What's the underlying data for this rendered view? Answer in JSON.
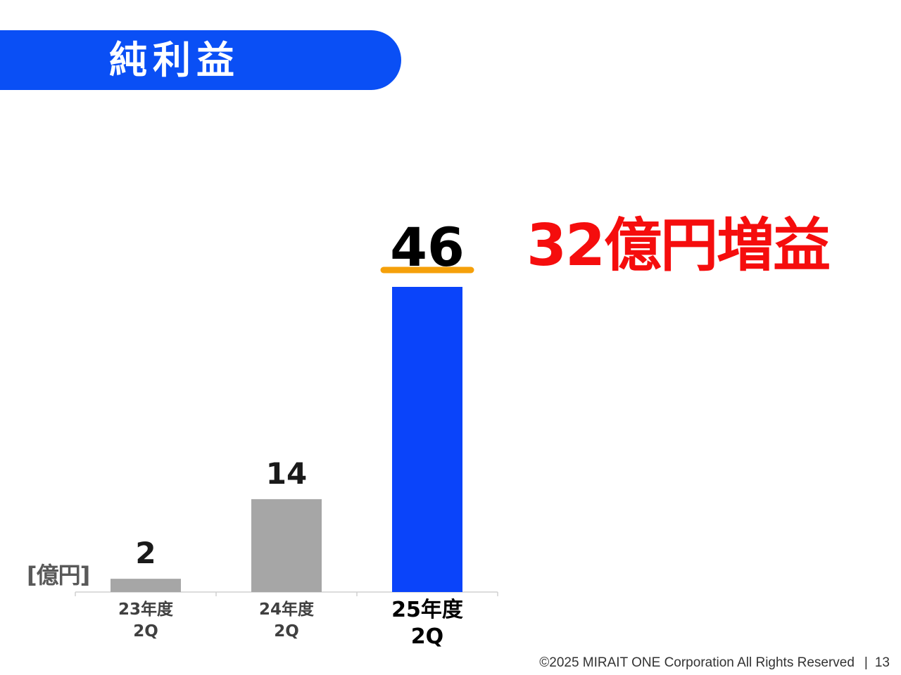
{
  "header": {
    "title": "純利益"
  },
  "callout": {
    "text": "32億円増益"
  },
  "chart_data": {
    "type": "bar",
    "unit_label": "[億円]",
    "categories": [
      [
        "23年度",
        "2Q"
      ],
      [
        "24年度",
        "2Q"
      ],
      [
        "25年度",
        "2Q"
      ]
    ],
    "values": [
      2,
      14,
      46
    ],
    "value_labels": [
      "2",
      "14",
      "46"
    ],
    "colors": [
      "#a6a6a6",
      "#a6a6a6",
      "#0a44fa"
    ],
    "highlight_index": 2,
    "highlight_color": "#f5a00a",
    "ylim": [
      0,
      46
    ]
  },
  "footer": {
    "copyright": "©2025 MIRAIT ONE Corporation All Rights Reserved",
    "separator": "|",
    "page_number": "13"
  }
}
